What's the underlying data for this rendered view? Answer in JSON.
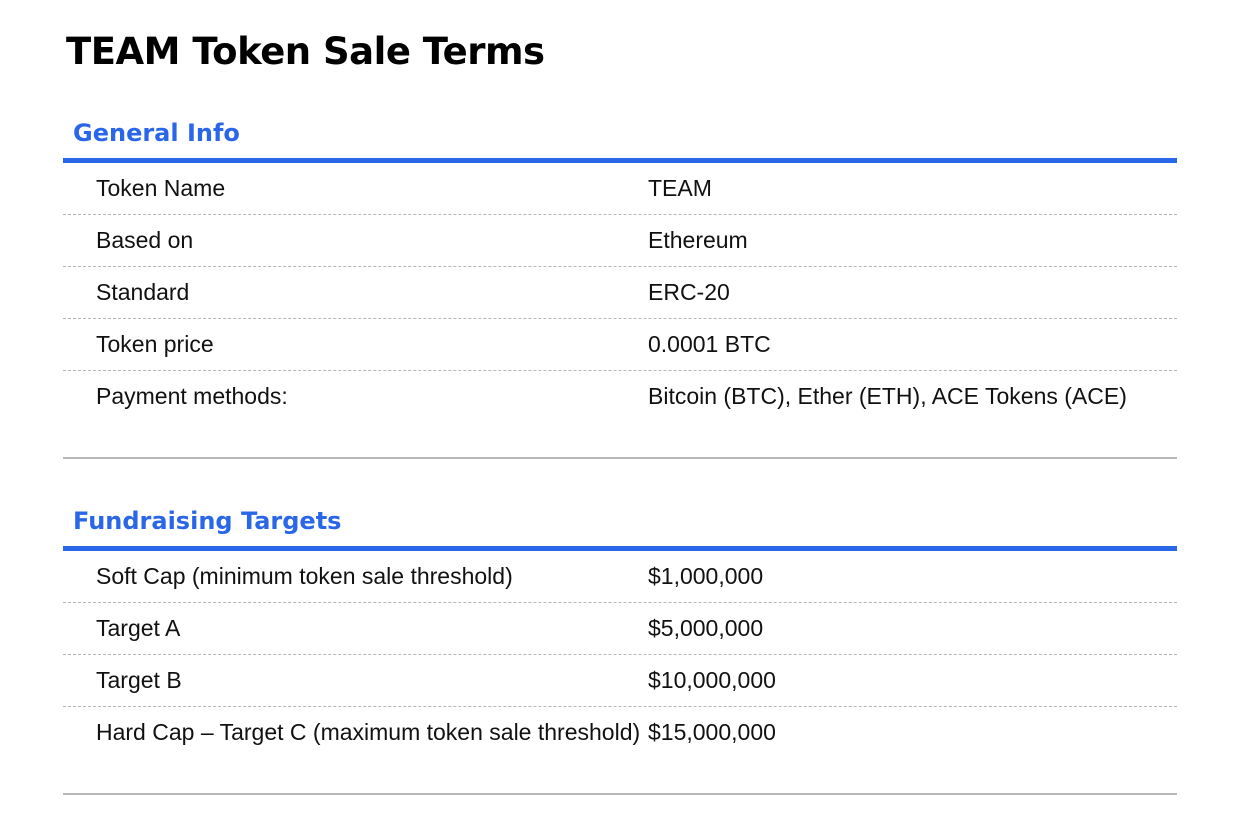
{
  "title": "TEAM Token Sale Terms",
  "sections": [
    {
      "heading": "General Info",
      "rows": [
        {
          "label": "Token Name",
          "value": "TEAM"
        },
        {
          "label": "Based on",
          "value": "Ethereum"
        },
        {
          "label": "Standard",
          "value": "ERC-20"
        },
        {
          "label": "Token price",
          "value": "0.0001 BTC"
        },
        {
          "label": "Payment methods:",
          "value": "Bitcoin (BTC), Ether (ETH), ACE Tokens (ACE)"
        }
      ]
    },
    {
      "heading": "Fundraising Targets",
      "rows": [
        {
          "label": "Soft Cap (minimum token sale threshold)",
          "value": "$1,000,000"
        },
        {
          "label": "Target A",
          "value": "$5,000,000"
        },
        {
          "label": "Target B",
          "value": "$10,000,000"
        },
        {
          "label": "Hard Cap – Target C (maximum token sale threshold)",
          "value": "$15,000,000"
        }
      ]
    }
  ],
  "colors": {
    "accent": "#2a67e8",
    "text": "#111111",
    "rule": "#b8b8b8"
  }
}
